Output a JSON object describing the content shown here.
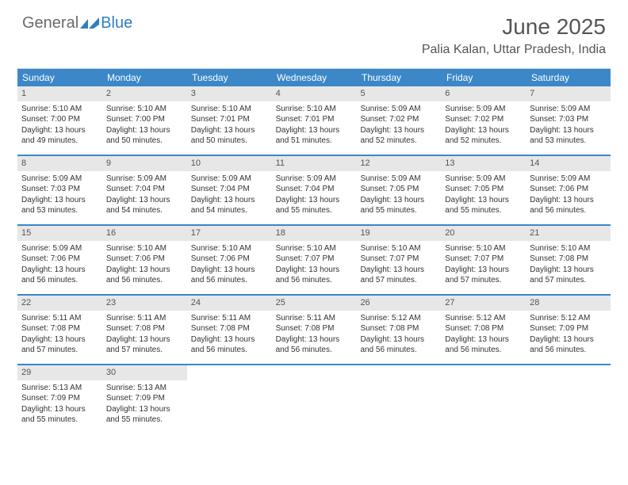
{
  "brand": {
    "part1": "General",
    "part2": "Blue"
  },
  "title": "June 2025",
  "location": "Palia Kalan, Uttar Pradesh, India",
  "colors": {
    "header_bg": "#3b87c8",
    "header_text": "#ffffff",
    "daynum_bg": "#e7e7e7",
    "row_border": "#3b87c8",
    "logo_gray": "#6a6a6a",
    "logo_blue": "#2f7fbf"
  },
  "weekdays": [
    "Sunday",
    "Monday",
    "Tuesday",
    "Wednesday",
    "Thursday",
    "Friday",
    "Saturday"
  ],
  "weeks": [
    [
      {
        "num": "1",
        "sunrise": "5:10 AM",
        "sunset": "7:00 PM",
        "daylight": "13 hours and 49 minutes."
      },
      {
        "num": "2",
        "sunrise": "5:10 AM",
        "sunset": "7:00 PM",
        "daylight": "13 hours and 50 minutes."
      },
      {
        "num": "3",
        "sunrise": "5:10 AM",
        "sunset": "7:01 PM",
        "daylight": "13 hours and 50 minutes."
      },
      {
        "num": "4",
        "sunrise": "5:10 AM",
        "sunset": "7:01 PM",
        "daylight": "13 hours and 51 minutes."
      },
      {
        "num": "5",
        "sunrise": "5:09 AM",
        "sunset": "7:02 PM",
        "daylight": "13 hours and 52 minutes."
      },
      {
        "num": "6",
        "sunrise": "5:09 AM",
        "sunset": "7:02 PM",
        "daylight": "13 hours and 52 minutes."
      },
      {
        "num": "7",
        "sunrise": "5:09 AM",
        "sunset": "7:03 PM",
        "daylight": "13 hours and 53 minutes."
      }
    ],
    [
      {
        "num": "8",
        "sunrise": "5:09 AM",
        "sunset": "7:03 PM",
        "daylight": "13 hours and 53 minutes."
      },
      {
        "num": "9",
        "sunrise": "5:09 AM",
        "sunset": "7:04 PM",
        "daylight": "13 hours and 54 minutes."
      },
      {
        "num": "10",
        "sunrise": "5:09 AM",
        "sunset": "7:04 PM",
        "daylight": "13 hours and 54 minutes."
      },
      {
        "num": "11",
        "sunrise": "5:09 AM",
        "sunset": "7:04 PM",
        "daylight": "13 hours and 55 minutes."
      },
      {
        "num": "12",
        "sunrise": "5:09 AM",
        "sunset": "7:05 PM",
        "daylight": "13 hours and 55 minutes."
      },
      {
        "num": "13",
        "sunrise": "5:09 AM",
        "sunset": "7:05 PM",
        "daylight": "13 hours and 55 minutes."
      },
      {
        "num": "14",
        "sunrise": "5:09 AM",
        "sunset": "7:06 PM",
        "daylight": "13 hours and 56 minutes."
      }
    ],
    [
      {
        "num": "15",
        "sunrise": "5:09 AM",
        "sunset": "7:06 PM",
        "daylight": "13 hours and 56 minutes."
      },
      {
        "num": "16",
        "sunrise": "5:10 AM",
        "sunset": "7:06 PM",
        "daylight": "13 hours and 56 minutes."
      },
      {
        "num": "17",
        "sunrise": "5:10 AM",
        "sunset": "7:06 PM",
        "daylight": "13 hours and 56 minutes."
      },
      {
        "num": "18",
        "sunrise": "5:10 AM",
        "sunset": "7:07 PM",
        "daylight": "13 hours and 56 minutes."
      },
      {
        "num": "19",
        "sunrise": "5:10 AM",
        "sunset": "7:07 PM",
        "daylight": "13 hours and 57 minutes."
      },
      {
        "num": "20",
        "sunrise": "5:10 AM",
        "sunset": "7:07 PM",
        "daylight": "13 hours and 57 minutes."
      },
      {
        "num": "21",
        "sunrise": "5:10 AM",
        "sunset": "7:08 PM",
        "daylight": "13 hours and 57 minutes."
      }
    ],
    [
      {
        "num": "22",
        "sunrise": "5:11 AM",
        "sunset": "7:08 PM",
        "daylight": "13 hours and 57 minutes."
      },
      {
        "num": "23",
        "sunrise": "5:11 AM",
        "sunset": "7:08 PM",
        "daylight": "13 hours and 57 minutes."
      },
      {
        "num": "24",
        "sunrise": "5:11 AM",
        "sunset": "7:08 PM",
        "daylight": "13 hours and 56 minutes."
      },
      {
        "num": "25",
        "sunrise": "5:11 AM",
        "sunset": "7:08 PM",
        "daylight": "13 hours and 56 minutes."
      },
      {
        "num": "26",
        "sunrise": "5:12 AM",
        "sunset": "7:08 PM",
        "daylight": "13 hours and 56 minutes."
      },
      {
        "num": "27",
        "sunrise": "5:12 AM",
        "sunset": "7:08 PM",
        "daylight": "13 hours and 56 minutes."
      },
      {
        "num": "28",
        "sunrise": "5:12 AM",
        "sunset": "7:09 PM",
        "daylight": "13 hours and 56 minutes."
      }
    ],
    [
      {
        "num": "29",
        "sunrise": "5:13 AM",
        "sunset": "7:09 PM",
        "daylight": "13 hours and 55 minutes."
      },
      {
        "num": "30",
        "sunrise": "5:13 AM",
        "sunset": "7:09 PM",
        "daylight": "13 hours and 55 minutes."
      },
      null,
      null,
      null,
      null,
      null
    ]
  ],
  "labels": {
    "sunrise": "Sunrise:",
    "sunset": "Sunset:",
    "daylight": "Daylight:"
  }
}
